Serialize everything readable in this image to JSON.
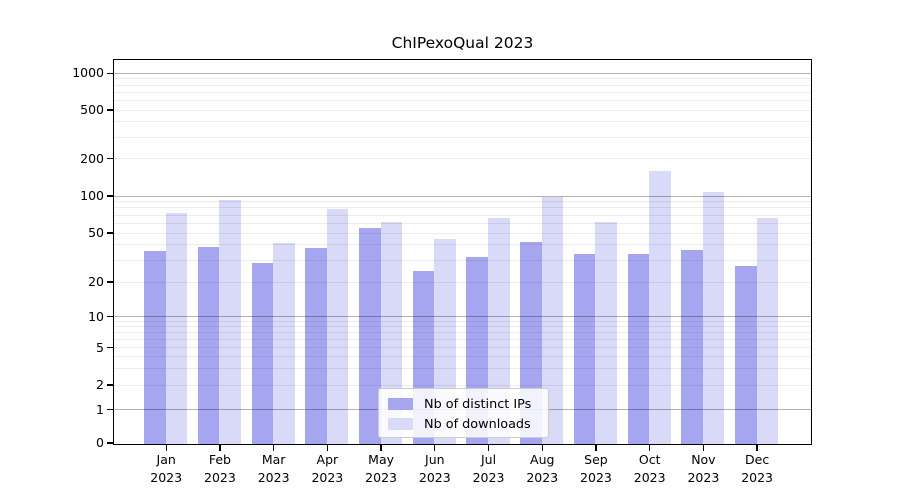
{
  "chart_data": {
    "type": "bar",
    "title": "ChIPexoQual 2023",
    "months": [
      "Jan",
      "Feb",
      "Mar",
      "Apr",
      "May",
      "Jun",
      "Jul",
      "Aug",
      "Sep",
      "Oct",
      "Nov",
      "Dec"
    ],
    "year": "2023",
    "series": [
      {
        "name": "Nb of distinct IPs",
        "color": "#a6a6f0",
        "values": [
          36,
          39,
          29,
          38,
          55,
          25,
          32,
          43,
          34,
          34,
          37,
          27
        ]
      },
      {
        "name": "Nb of downloads",
        "color": "#d9d9f8",
        "values": [
          73,
          94,
          42,
          79,
          62,
          45,
          67,
          100,
          62,
          160,
          108,
          67
        ]
      }
    ],
    "y_ticks": [
      0,
      1,
      2,
      5,
      10,
      20,
      50,
      100,
      200,
      500,
      1000
    ],
    "yscale": "symlog",
    "ylim": [
      0,
      1400
    ],
    "grid": true,
    "legend_position": "lower center",
    "xlabel": "",
    "ylabel": ""
  }
}
